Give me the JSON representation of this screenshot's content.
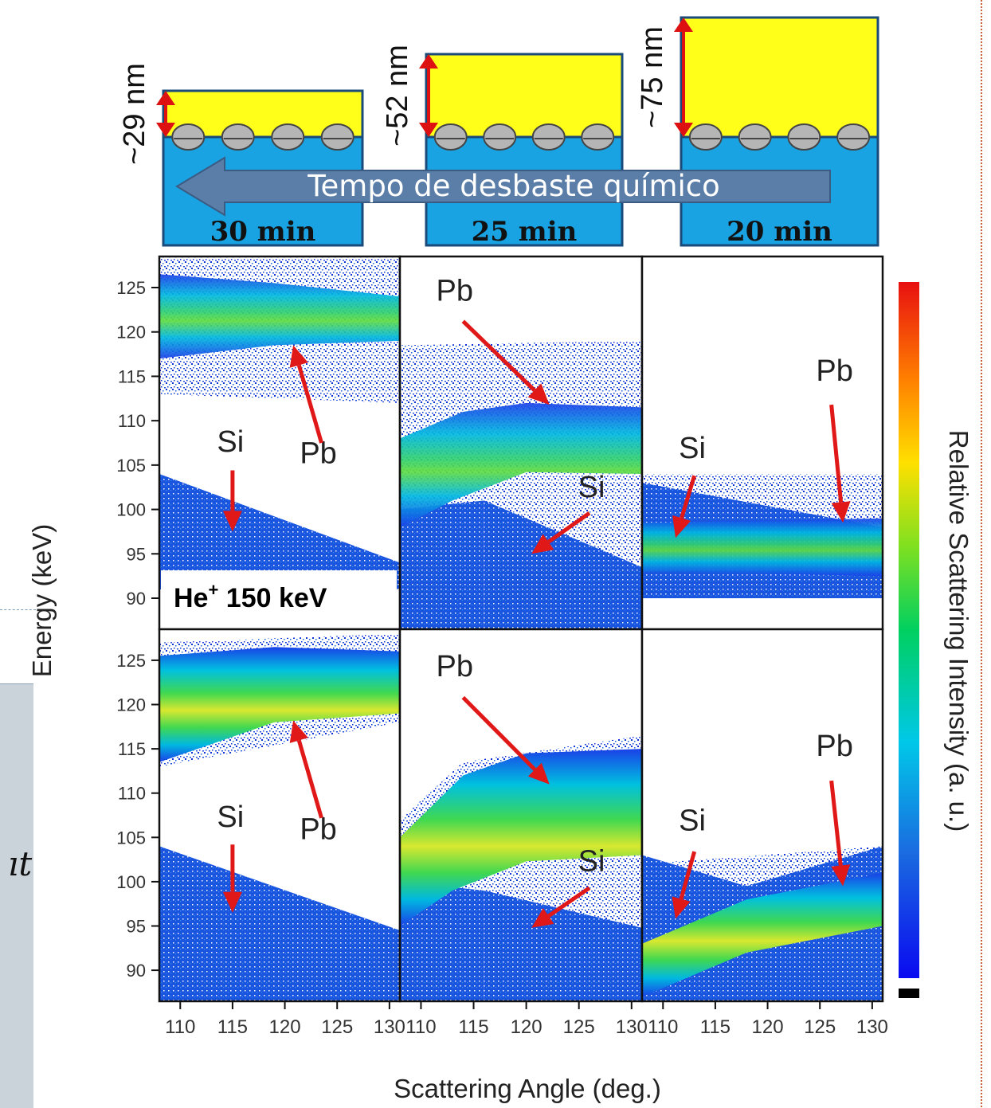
{
  "schematic": {
    "samples": [
      {
        "thickness": "~29 nm",
        "time": "30 min",
        "thickness_nm": 29
      },
      {
        "thickness": "~52 nm",
        "time": "25 min",
        "thickness_nm": 52
      },
      {
        "thickness": "~75 nm",
        "time": "20 min",
        "thickness_nm": 75
      }
    ],
    "arrow_label": "Tempo de desbaste químico",
    "colors": {
      "film": "#ffff1a",
      "substrate": "#1aa3e3",
      "arrow": "#5a7ea8",
      "dimension": "#dd1111",
      "particle": "#b5b5b5"
    }
  },
  "chart_data": {
    "type": "heatmap",
    "xlabel": "Scattering Angle (deg.)",
    "ylabel": "Energy (keV)",
    "colorbar_label": "Relative Scattering Intensity (a. u.)",
    "xlim": [
      108,
      131
    ],
    "ylim": [
      86.5,
      128.5
    ],
    "xticks": [
      110,
      115,
      120,
      125,
      130
    ],
    "yticks": [
      90,
      95,
      100,
      105,
      110,
      115,
      120,
      125
    ],
    "beam_label": "He",
    "beam_sup": "+",
    "beam_energy": "150 keV",
    "colormap": [
      "#0a0af0",
      "#1a6be0",
      "#00c8e8",
      "#00d060",
      "#7fe020",
      "#ffe000",
      "#ff8000",
      "#e81010"
    ],
    "panels": [
      {
        "row": "top",
        "col": 0,
        "time": "30 min",
        "pb_upper": [
          [
            108,
            126.5
          ],
          [
            119,
            125.5
          ],
          [
            131,
            124
          ]
        ],
        "pb_lower": [
          [
            108,
            117
          ],
          [
            119,
            118.5
          ],
          [
            131,
            119
          ]
        ],
        "noise_upper": [
          [
            108,
            128.5
          ],
          [
            131,
            128.5
          ]
        ],
        "noise_lower": [
          [
            108,
            113
          ],
          [
            131,
            112
          ]
        ],
        "si_edge": [
          [
            108,
            104
          ],
          [
            131,
            94
          ]
        ],
        "si_floor": 91,
        "labels": [
          {
            "text": "Si",
            "x": 114.8,
            "y": 106.5
          },
          {
            "text": "Pb",
            "x": 123.2,
            "y": 105.2
          }
        ],
        "arrows": [
          {
            "from": [
              115.0,
              104.4
            ],
            "to": [
              115.0,
              97.5
            ]
          },
          {
            "from": [
              123.5,
              107.5
            ],
            "to": [
              120.8,
              118.5
            ]
          }
        ]
      },
      {
        "row": "top",
        "col": 1,
        "time": "25 min",
        "pb_upper": [
          [
            108,
            108
          ],
          [
            114,
            111
          ],
          [
            120,
            112
          ],
          [
            131,
            111.5
          ]
        ],
        "pb_lower": [
          [
            108,
            98
          ],
          [
            113,
            101
          ],
          [
            120,
            104.2
          ],
          [
            131,
            104
          ]
        ],
        "noise_upper": [
          [
            108,
            118.5
          ],
          [
            131,
            119
          ]
        ],
        "noise_lower": [
          [
            108,
            95
          ],
          [
            131,
            94
          ]
        ],
        "si_edge": [
          [
            116,
            101
          ],
          [
            131,
            93.5
          ]
        ],
        "si_floor": 86.5,
        "labels": [
          {
            "text": "Pb",
            "x": 113.2,
            "y": 123.5
          },
          {
            "text": "Si",
            "x": 126.2,
            "y": 101.4
          }
        ],
        "arrows": [
          {
            "from": [
              114.0,
              121.2
            ],
            "to": [
              122.2,
              111.8
            ]
          },
          {
            "from": [
              126.0,
              99.6
            ],
            "to": [
              120.5,
              95.0
            ]
          }
        ]
      },
      {
        "row": "top",
        "col": 2,
        "time": "20 min",
        "pb_upper": [
          [
            108,
            98.5
          ],
          [
            131,
            99
          ]
        ],
        "pb_lower": [
          [
            108,
            93
          ],
          [
            131,
            92.5
          ]
        ],
        "noise_upper": [
          [
            108,
            104
          ],
          [
            131,
            104
          ]
        ],
        "noise_lower": [
          [
            108,
            90
          ],
          [
            131,
            90
          ]
        ],
        "si_edge": [
          [
            108,
            103
          ],
          [
            131,
            98
          ]
        ],
        "si_floor": 90,
        "labels": [
          {
            "text": "Si",
            "x": 112.8,
            "y": 105.8
          },
          {
            "text": "Pb",
            "x": 126.4,
            "y": 114.5
          }
        ],
        "arrows": [
          {
            "from": [
              113.0,
              103.8
            ],
            "to": [
              111.2,
              96.8
            ]
          },
          {
            "from": [
              126.1,
              111.8
            ],
            "to": [
              127.2,
              98.5
            ]
          }
        ]
      },
      {
        "row": "bottom",
        "col": 0,
        "time": "30 min",
        "pb_upper": [
          [
            108,
            125.5
          ],
          [
            119,
            126.5
          ],
          [
            131,
            126
          ]
        ],
        "pb_lower": [
          [
            108,
            113.5
          ],
          [
            119,
            118
          ],
          [
            131,
            119
          ]
        ],
        "noise_upper": [
          [
            108,
            127
          ],
          [
            131,
            128
          ]
        ],
        "noise_lower": [
          [
            108,
            113
          ],
          [
            131,
            118
          ]
        ],
        "si_edge": [
          [
            108,
            104
          ],
          [
            131,
            94.5
          ]
        ],
        "si_floor": 86.5,
        "labels": [
          {
            "text": "Si",
            "x": 114.8,
            "y": 106.2
          },
          {
            "text": "Pb",
            "x": 123.2,
            "y": 104.8
          }
        ],
        "arrows": [
          {
            "from": [
              115.0,
              104.2
            ],
            "to": [
              115.0,
              96.5
            ]
          },
          {
            "from": [
              123.5,
              107.2
            ],
            "to": [
              120.8,
              118.2
            ]
          }
        ]
      },
      {
        "row": "bottom",
        "col": 1,
        "time": "25 min",
        "pb_upper": [
          [
            108,
            105
          ],
          [
            114,
            112
          ],
          [
            120,
            114.5
          ],
          [
            131,
            115
          ]
        ],
        "pb_lower": [
          [
            108,
            95
          ],
          [
            113,
            99
          ],
          [
            120,
            102.3
          ],
          [
            131,
            103
          ]
        ],
        "noise_upper": [
          [
            108,
            107
          ],
          [
            114,
            113.5
          ],
          [
            131,
            116.5
          ]
        ],
        "noise_lower": [
          [
            108,
            95
          ],
          [
            131,
            95
          ]
        ],
        "si_edge": [
          [
            116,
            99
          ],
          [
            131,
            94.8
          ]
        ],
        "si_floor": 86.5,
        "labels": [
          {
            "text": "Pb",
            "x": 113.2,
            "y": 123.2
          },
          {
            "text": "Si",
            "x": 126.2,
            "y": 101.2
          }
        ],
        "arrows": [
          {
            "from": [
              114.0,
              120.8
            ],
            "to": [
              122.2,
              111.0
            ]
          },
          {
            "from": [
              126.0,
              99.3
            ],
            "to": [
              120.5,
              94.8
            ]
          }
        ]
      },
      {
        "row": "bottom",
        "col": 2,
        "time": "20 min",
        "pb_upper": [
          [
            108,
            93
          ],
          [
            118,
            98
          ],
          [
            131,
            101
          ]
        ],
        "pb_lower": [
          [
            108,
            87
          ],
          [
            118,
            92
          ],
          [
            131,
            95
          ]
        ],
        "noise_upper": [
          [
            108,
            102
          ],
          [
            131,
            104
          ]
        ],
        "noise_lower": [
          [
            108,
            86.5
          ],
          [
            131,
            86.5
          ]
        ],
        "si_edge": [
          [
            108,
            103
          ],
          [
            118,
            99.5
          ],
          [
            131,
            104
          ]
        ],
        "si_floor": 86.5,
        "labels": [
          {
            "text": "Si",
            "x": 112.8,
            "y": 105.8
          },
          {
            "text": "Pb",
            "x": 126.4,
            "y": 114.2
          }
        ],
        "arrows": [
          {
            "from": [
              113.0,
              103.4
            ],
            "to": [
              111.2,
              95.8
            ]
          },
          {
            "from": [
              126.1,
              111.4
            ],
            "to": [
              127.2,
              99.5
            ]
          }
        ]
      }
    ]
  }
}
